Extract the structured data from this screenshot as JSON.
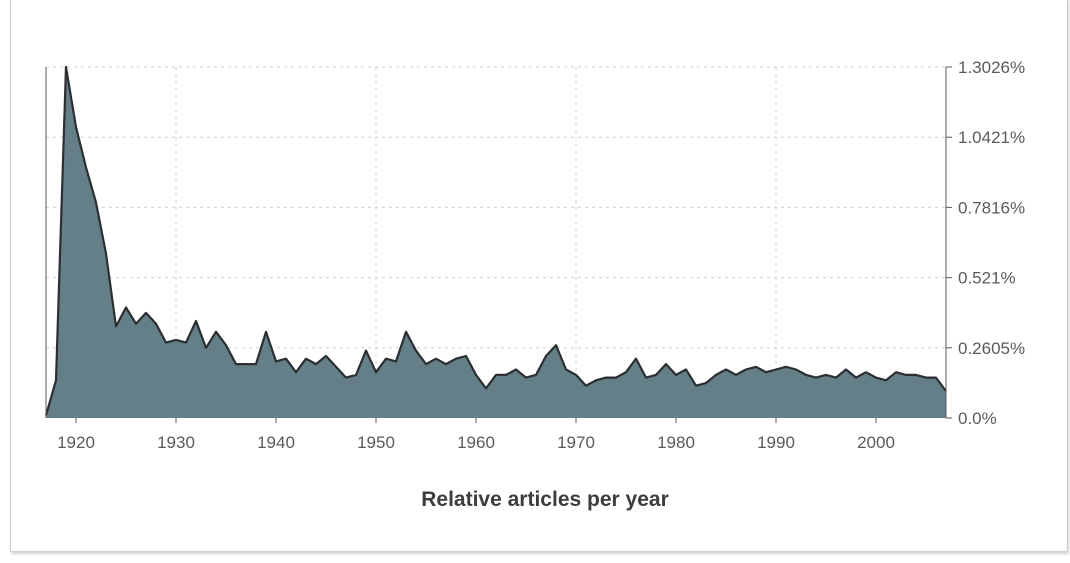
{
  "caption": "Relative articles per year",
  "colors": {
    "area_fill": "#657f88",
    "line": "#2b2f31",
    "grid": "#cfcfcf",
    "axis": "#5a5a5a"
  },
  "chart_data": {
    "type": "area",
    "title": "",
    "xlabel": "Relative articles per year",
    "ylabel": "",
    "xlim": [
      1917,
      2007
    ],
    "ylim": [
      0,
      1.3026
    ],
    "grid": true,
    "y_axis_side": "right",
    "x_ticks": [
      {
        "value": 1920,
        "label": "1920"
      },
      {
        "value": 1930,
        "label": "1930"
      },
      {
        "value": 1940,
        "label": "1940"
      },
      {
        "value": 1950,
        "label": "1950"
      },
      {
        "value": 1960,
        "label": "1960"
      },
      {
        "value": 1970,
        "label": "1970"
      },
      {
        "value": 1980,
        "label": "1980"
      },
      {
        "value": 1990,
        "label": "1990"
      },
      {
        "value": 2000,
        "label": "2000"
      }
    ],
    "y_ticks": [
      {
        "value": 0,
        "label": "0.0%"
      },
      {
        "value": 0.2605,
        "label": "0.2605%"
      },
      {
        "value": 0.521,
        "label": "0.521%"
      },
      {
        "value": 0.7816,
        "label": "0.7816%"
      },
      {
        "value": 1.0421,
        "label": "1.0421%"
      },
      {
        "value": 1.3026,
        "label": "1.3026%"
      }
    ],
    "series": [
      {
        "x": [
          1917,
          1918,
          1919,
          1920,
          1921,
          1922,
          1923,
          1924,
          1925,
          1926,
          1927,
          1928,
          1929,
          1930,
          1931,
          1932,
          1933,
          1934,
          1935,
          1936,
          1937,
          1938,
          1939,
          1940,
          1941,
          1942,
          1943,
          1944,
          1945,
          1946,
          1947,
          1948,
          1949,
          1950,
          1951,
          1952,
          1953,
          1954,
          1955,
          1956,
          1957,
          1958,
          1959,
          1960,
          1961,
          1962,
          1963,
          1964,
          1965,
          1966,
          1967,
          1968,
          1969,
          1970,
          1971,
          1972,
          1973,
          1974,
          1975,
          1976,
          1977,
          1978,
          1979,
          1980,
          1981,
          1982,
          1983,
          1984,
          1985,
          1986,
          1987,
          1988,
          1989,
          1990,
          1991,
          1992,
          1993,
          1994,
          1995,
          1996,
          1997,
          1998,
          1999,
          2000,
          2001,
          2002,
          2003,
          2004,
          2005,
          2006,
          2007
        ],
        "values": [
          0.01,
          0.14,
          1.3026,
          1.08,
          0.93,
          0.8,
          0.61,
          0.34,
          0.41,
          0.35,
          0.39,
          0.35,
          0.28,
          0.29,
          0.28,
          0.36,
          0.26,
          0.32,
          0.27,
          0.2,
          0.2,
          0.2,
          0.32,
          0.21,
          0.22,
          0.17,
          0.22,
          0.2,
          0.23,
          0.19,
          0.15,
          0.16,
          0.25,
          0.17,
          0.22,
          0.21,
          0.32,
          0.25,
          0.2,
          0.22,
          0.2,
          0.22,
          0.23,
          0.16,
          0.11,
          0.16,
          0.16,
          0.18,
          0.15,
          0.16,
          0.23,
          0.27,
          0.18,
          0.16,
          0.12,
          0.14,
          0.15,
          0.15,
          0.17,
          0.22,
          0.15,
          0.16,
          0.2,
          0.16,
          0.18,
          0.12,
          0.13,
          0.16,
          0.18,
          0.16,
          0.18,
          0.19,
          0.17,
          0.18,
          0.19,
          0.18,
          0.16,
          0.15,
          0.16,
          0.15,
          0.18,
          0.15,
          0.17,
          0.15,
          0.14,
          0.17,
          0.16,
          0.16,
          0.15,
          0.15,
          0.1
        ]
      }
    ]
  }
}
